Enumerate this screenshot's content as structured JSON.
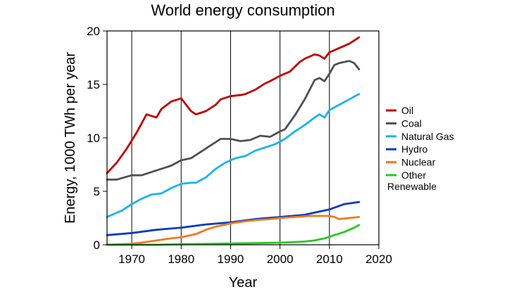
{
  "chart_data": {
    "type": "line",
    "title": "World energy consumption",
    "xlabel": "Year",
    "ylabel": "Energy, 1000 TWh per year",
    "xlim": [
      1965,
      2020
    ],
    "ylim": [
      0,
      20
    ],
    "x_ticks": [
      1970,
      1980,
      1990,
      2000,
      2010,
      2020
    ],
    "y_ticks": [
      0,
      5,
      10,
      15,
      20
    ],
    "grid": "vertical",
    "legend_position": "right",
    "series": [
      {
        "name": "Oil",
        "color": "#c00000",
        "x": [
          1965,
          1967,
          1969,
          1971,
          1973,
          1975,
          1976,
          1978,
          1980,
          1982,
          1983,
          1985,
          1987,
          1988,
          1990,
          1992,
          1993,
          1995,
          1997,
          1998,
          2000,
          2002,
          2004,
          2005,
          2007,
          2008,
          2009,
          2010,
          2012,
          2014,
          2016
        ],
        "y": [
          6.7,
          7.7,
          9.0,
          10.5,
          12.2,
          11.9,
          12.7,
          13.4,
          13.7,
          12.5,
          12.2,
          12.5,
          13.1,
          13.6,
          13.9,
          14.0,
          14.1,
          14.5,
          15.1,
          15.3,
          15.8,
          16.2,
          17.1,
          17.4,
          17.8,
          17.7,
          17.4,
          18.0,
          18.4,
          18.8,
          19.4
        ]
      },
      {
        "name": "Coal",
        "color": "#505050",
        "x": [
          1965,
          1967,
          1970,
          1972,
          1974,
          1976,
          1978,
          1980,
          1982,
          1984,
          1986,
          1988,
          1990,
          1992,
          1994,
          1996,
          1998,
          2000,
          2001,
          2003,
          2005,
          2007,
          2008,
          2009,
          2010,
          2011,
          2012,
          2013,
          2014,
          2015,
          2016
        ],
        "y": [
          6.1,
          6.1,
          6.5,
          6.5,
          6.8,
          7.1,
          7.4,
          7.9,
          8.1,
          8.7,
          9.3,
          9.9,
          9.9,
          9.7,
          9.8,
          10.2,
          10.1,
          10.6,
          10.8,
          12.1,
          13.6,
          15.4,
          15.6,
          15.3,
          16.0,
          16.8,
          17.0,
          17.1,
          17.2,
          17.0,
          16.4
        ]
      },
      {
        "name": "Natural Gas",
        "color": "#1ab2f0",
        "x": [
          1965,
          1968,
          1970,
          1972,
          1974,
          1976,
          1978,
          1980,
          1982,
          1983,
          1985,
          1987,
          1989,
          1991,
          1993,
          1995,
          1997,
          1999,
          2001,
          2003,
          2005,
          2007,
          2008,
          2009,
          2010,
          2012,
          2014,
          2016
        ],
        "y": [
          2.6,
          3.2,
          3.8,
          4.3,
          4.7,
          4.8,
          5.3,
          5.7,
          5.8,
          5.8,
          6.3,
          7.1,
          7.7,
          8.1,
          8.3,
          8.8,
          9.1,
          9.4,
          9.9,
          10.6,
          11.2,
          11.9,
          12.2,
          11.9,
          12.6,
          13.1,
          13.6,
          14.1
        ]
      },
      {
        "name": "Hydro",
        "color": "#0a3cbe",
        "x": [
          1965,
          1970,
          1975,
          1980,
          1985,
          1990,
          1995,
          2000,
          2005,
          2010,
          2013,
          2016
        ],
        "y": [
          0.9,
          1.1,
          1.4,
          1.6,
          1.9,
          2.1,
          2.4,
          2.6,
          2.8,
          3.3,
          3.8,
          4.0
        ]
      },
      {
        "name": "Nuclear",
        "color": "#f07820",
        "x": [
          1965,
          1970,
          1972,
          1975,
          1978,
          1980,
          1983,
          1985,
          1987,
          1990,
          1993,
          1995,
          1998,
          2000,
          2003,
          2006,
          2008,
          2010,
          2011,
          2012,
          2014,
          2016
        ],
        "y": [
          0.0,
          0.1,
          0.2,
          0.4,
          0.6,
          0.7,
          1.0,
          1.4,
          1.7,
          2.0,
          2.2,
          2.3,
          2.4,
          2.5,
          2.6,
          2.7,
          2.7,
          2.7,
          2.6,
          2.4,
          2.5,
          2.6
        ]
      },
      {
        "name": "Other Renewable",
        "color": "#22cc22",
        "x": [
          1965,
          1970,
          1975,
          1980,
          1985,
          1990,
          1995,
          2000,
          2003,
          2005,
          2007,
          2009,
          2011,
          2013,
          2014,
          2015,
          2016
        ],
        "y": [
          0.0,
          0.0,
          0.0,
          0.05,
          0.08,
          0.12,
          0.15,
          0.2,
          0.25,
          0.3,
          0.4,
          0.6,
          0.9,
          1.2,
          1.4,
          1.6,
          1.85
        ]
      }
    ],
    "legend": [
      {
        "series": 0,
        "lines": [
          "Oil"
        ]
      },
      {
        "series": 1,
        "lines": [
          "Coal"
        ]
      },
      {
        "series": 2,
        "lines": [
          "Natural Gas"
        ]
      },
      {
        "series": 3,
        "lines": [
          "Hydro"
        ]
      },
      {
        "series": 4,
        "lines": [
          "Nuclear"
        ]
      },
      {
        "series": 5,
        "lines": [
          "Other",
          "Renewable"
        ]
      }
    ]
  }
}
